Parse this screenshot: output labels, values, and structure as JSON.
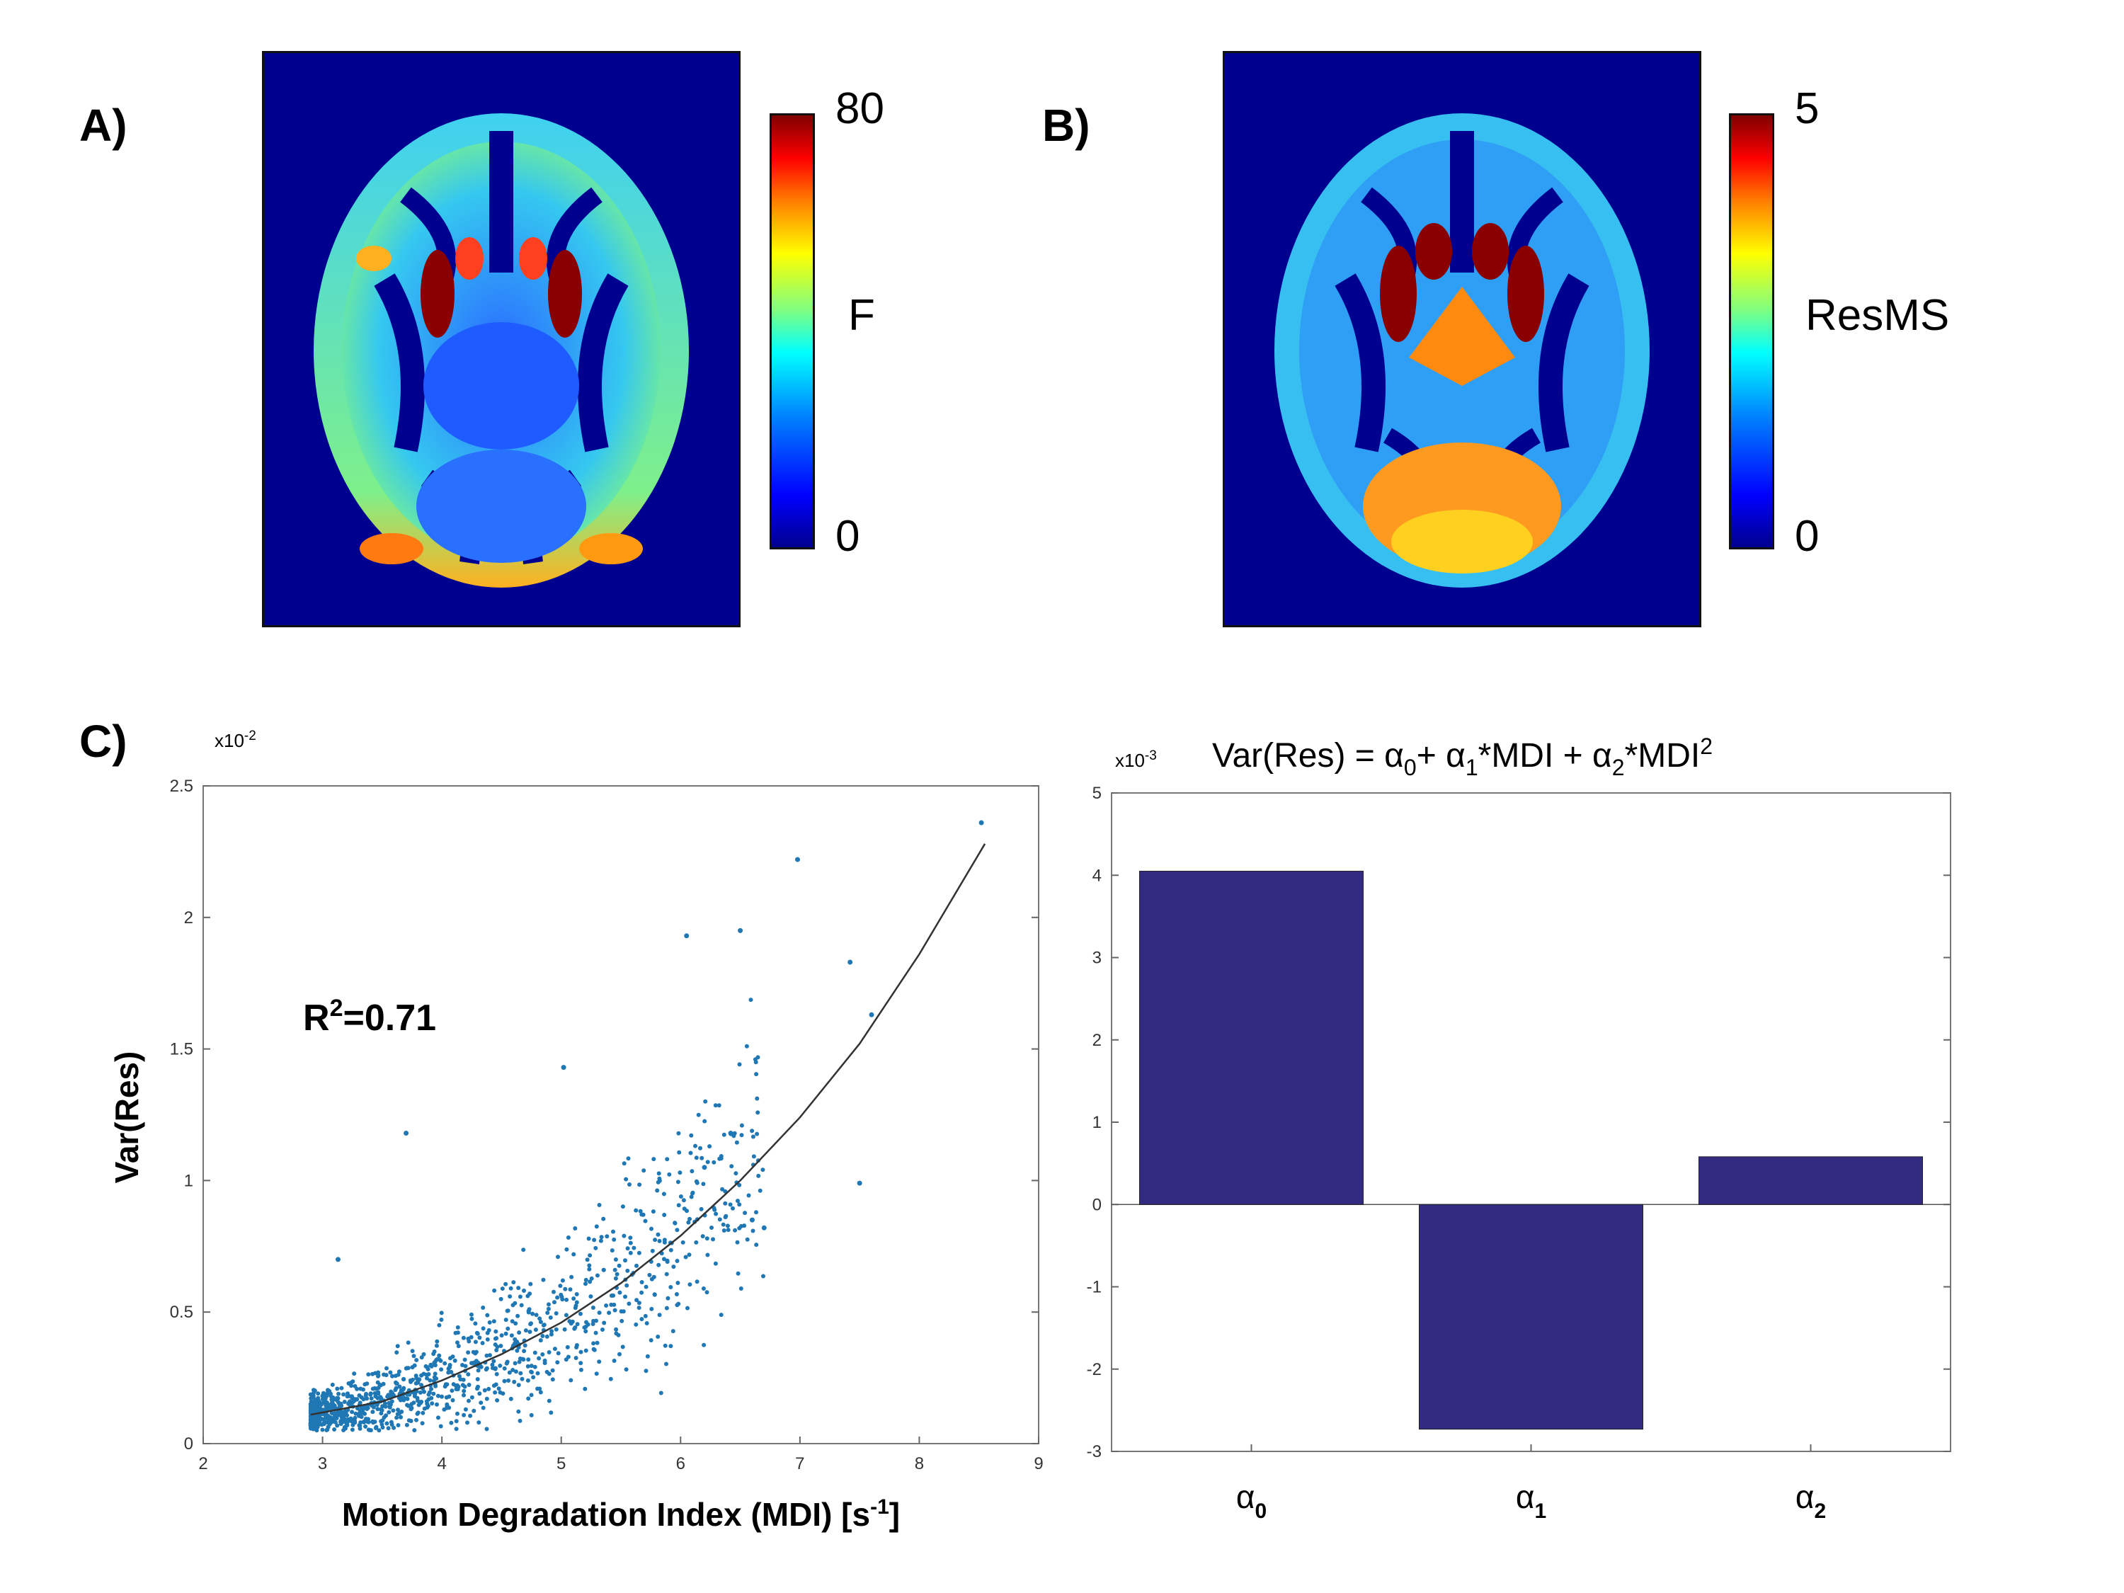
{
  "panelA": {
    "label": "A)",
    "colorbar": {
      "max_label": "80",
      "min_label": "0",
      "title": "F"
    }
  },
  "panelB": {
    "label": "B)",
    "colorbar": {
      "max_label": "5",
      "min_label": "0",
      "title": "ResMS"
    }
  },
  "panelC": {
    "label": "C)"
  },
  "colors": {
    "brain_background": "#00008f",
    "scatter_points": "#1f77b4",
    "fit_line": "#333333",
    "bars": "#332a82"
  },
  "chart_data": [
    {
      "type": "scatter",
      "title": "",
      "xlabel": "Motion Degradation Index (MDI) [s",
      "xlabel_sup": "-1",
      "xlabel_end": "]",
      "ylabel": "Var(Res)",
      "y_exponent": "x10",
      "y_exponent_sup": "-2",
      "annotation": {
        "text": "R",
        "sup": "2",
        "rest": "=0.71"
      },
      "xlim": [
        2,
        9
      ],
      "ylim": [
        0,
        2.5
      ],
      "xticks": [
        2,
        3,
        4,
        5,
        6,
        7,
        8,
        9
      ],
      "yticks": [
        0,
        0.5,
        1,
        1.5,
        2,
        2.5
      ],
      "ytick_labels": [
        "0",
        "0.5",
        "1",
        "1.5",
        "2",
        "2.5"
      ],
      "fit_line": {
        "x": [
          2.9,
          3.5,
          4.0,
          4.5,
          5.0,
          5.5,
          6.0,
          6.5,
          7.0,
          7.5,
          8.0,
          8.55
        ],
        "y": [
          0.11,
          0.16,
          0.24,
          0.34,
          0.46,
          0.61,
          0.79,
          1.0,
          1.24,
          1.52,
          1.86,
          2.28
        ]
      },
      "outliers": {
        "x": [
          8.52,
          6.98,
          6.05,
          6.5,
          7.42,
          7.6,
          5.02,
          3.7,
          3.13,
          7.5,
          6.6,
          6.7,
          6.42,
          6.2
        ],
        "y": [
          2.36,
          2.22,
          1.93,
          1.95,
          1.83,
          1.63,
          1.43,
          1.18,
          0.7,
          0.99,
          0.85,
          0.82,
          1.18,
          1.05
        ]
      },
      "cloud_model": {
        "n_points": 1200,
        "x_range": [
          2.9,
          6.7
        ],
        "x_skew": 0.55,
        "noise": 0.09
      }
    },
    {
      "type": "bar",
      "title_prefix": "Var(Res) = ",
      "title_parts": [
        "α",
        "0",
        "+ ",
        "α",
        "1",
        "*MDI + ",
        "α",
        "2",
        "*MDI",
        "2"
      ],
      "y_exponent": "x10",
      "y_exponent_sup": "-3",
      "categories": [
        {
          "base": "α",
          "sub": "0"
        },
        {
          "base": "α",
          "sub": "1"
        },
        {
          "base": "α",
          "sub": "2"
        }
      ],
      "values": [
        4.05,
        -2.73,
        0.58
      ],
      "ylim": [
        -3,
        5
      ],
      "yticks": [
        -3,
        -2,
        -1,
        0,
        1,
        2,
        3,
        4,
        5
      ],
      "ytick_labels": [
        "-3",
        "-2",
        "-1",
        "0",
        "1",
        "2",
        "3",
        "4",
        "5"
      ]
    }
  ]
}
